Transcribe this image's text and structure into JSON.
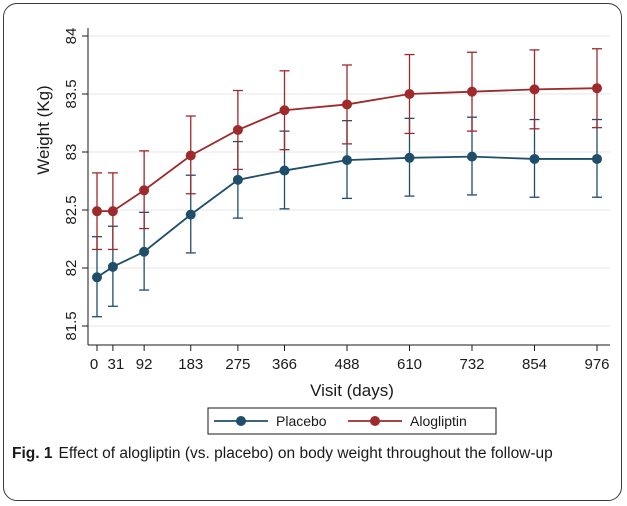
{
  "chart_data": {
    "type": "line",
    "title": "",
    "xlabel": "Visit (days)",
    "ylabel": "Weight (Kg)",
    "x_tick_labels": [
      "0",
      "31",
      "92",
      "183",
      "275",
      "366",
      "488",
      "610",
      "732",
      "854",
      "976"
    ],
    "y_tick_labels": [
      "81.5",
      "82",
      "82.5",
      "83",
      "83.5",
      "84"
    ],
    "ylim": [
      81.5,
      84
    ],
    "grid": true,
    "legend_position": "bottom",
    "series": [
      {
        "name": "Placebo",
        "color": "#1f4e6b",
        "values": [
          81.92,
          82.01,
          82.14,
          82.46,
          82.76,
          82.84,
          82.93,
          82.95,
          82.96,
          82.94,
          82.94
        ],
        "ci_low": [
          81.58,
          81.67,
          81.81,
          82.13,
          82.43,
          82.51,
          82.6,
          82.62,
          82.63,
          82.61,
          82.61
        ],
        "ci_high": [
          82.27,
          82.36,
          82.48,
          82.8,
          83.09,
          83.18,
          83.27,
          83.29,
          83.3,
          83.28,
          83.28
        ]
      },
      {
        "name": "Alogliptin",
        "color": "#9e2a2b",
        "values": [
          82.49,
          82.49,
          82.67,
          82.97,
          83.19,
          83.36,
          83.41,
          83.5,
          83.52,
          83.54,
          83.55
        ],
        "ci_low": [
          82.16,
          82.16,
          82.34,
          82.64,
          82.85,
          83.02,
          83.07,
          83.16,
          83.18,
          83.2,
          83.21
        ],
        "ci_high": [
          82.82,
          82.82,
          83.01,
          83.31,
          83.53,
          83.7,
          83.75,
          83.84,
          83.86,
          83.88,
          83.89
        ]
      }
    ]
  },
  "caption": {
    "label": "Fig. 1",
    "text": "Effect of alogliptin (vs. placebo) on body weight throughout the follow-up"
  }
}
